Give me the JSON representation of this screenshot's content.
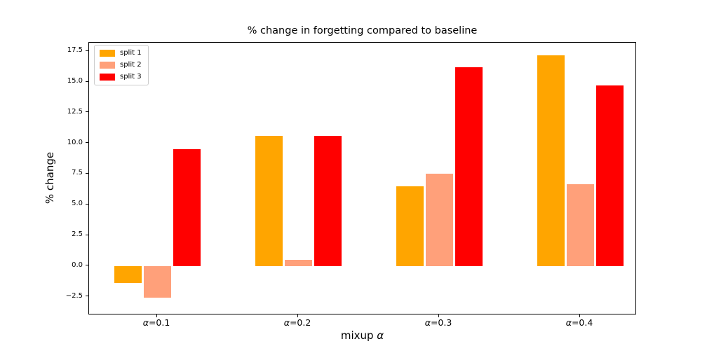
{
  "figure": {
    "background": "#ffffff"
  },
  "chart_data": {
    "type": "bar",
    "title": "% change in forgetting compared to baseline",
    "xlabel": "mixup α",
    "ylabel": "% change",
    "categories": [
      "α=0.1",
      "α=0.2",
      "α=0.3",
      "α=0.4"
    ],
    "series": [
      {
        "name": "split 1",
        "color": "#FFA500",
        "values": [
          -1.4,
          10.6,
          6.5,
          17.2
        ]
      },
      {
        "name": "split 2",
        "color": "#FFA07A",
        "values": [
          -2.6,
          0.5,
          7.5,
          6.7
        ]
      },
      {
        "name": "split 3",
        "color": "#FF0000",
        "values": [
          9.5,
          10.6,
          16.2,
          14.7
        ]
      }
    ],
    "ylim": [
      -4.0,
      18.2
    ],
    "y_ticks": [
      {
        "value": 17.5,
        "label": "17.5"
      },
      {
        "value": 15.0,
        "label": "15.0"
      },
      {
        "value": 12.5,
        "label": "12.5"
      },
      {
        "value": 10.0,
        "label": "10.0"
      },
      {
        "value": 7.5,
        "label": "7.5"
      },
      {
        "value": 5.0,
        "label": "5.0"
      },
      {
        "value": 2.5,
        "label": "2.5"
      },
      {
        "value": 0.0,
        "label": "0.0"
      },
      {
        "value": -2.5,
        "label": "−2.5"
      }
    ],
    "grid": false,
    "legend_position": "upper left",
    "axis_color": "#000000"
  }
}
